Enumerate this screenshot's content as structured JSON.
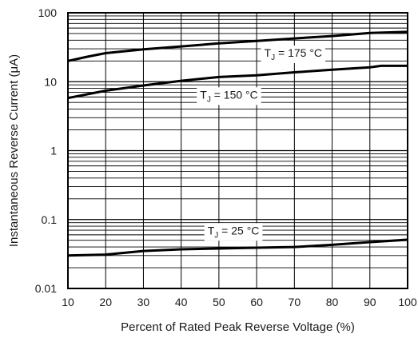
{
  "chart_data": {
    "type": "line",
    "xlabel": "Percent of Rated Peak Reverse Voltage (%)",
    "ylabel": "Instantaneous Reverse Current (μA)",
    "x_scale": "linear",
    "y_scale": "log",
    "xlim": [
      10,
      100
    ],
    "ylim": [
      0.01,
      100
    ],
    "grid": true,
    "x_ticks": [
      "10",
      "20",
      "30",
      "40",
      "50",
      "60",
      "70",
      "80",
      "90",
      "100"
    ],
    "y_ticks": [
      "0.01",
      "0.1",
      "1",
      "10",
      "100"
    ],
    "series": [
      {
        "name": "T_J = 175 °C",
        "label_main": "T",
        "label_sub": "J",
        "label_rest": " = 175 °C",
        "x": [
          10,
          15,
          20,
          30,
          40,
          50,
          60,
          70,
          80,
          90,
          100
        ],
        "y": [
          20,
          23,
          26,
          29.5,
          32.5,
          36,
          39,
          42.5,
          46,
          51,
          53
        ]
      },
      {
        "name": "T_J = 150 °C",
        "label_main": "T",
        "label_sub": "J",
        "label_rest": " = 150 °C",
        "x": [
          10,
          20,
          30,
          40,
          50,
          60,
          70,
          80,
          90,
          93,
          100
        ],
        "y": [
          5.8,
          7.4,
          8.8,
          10.3,
          11.7,
          12.4,
          13.7,
          14.9,
          16.2,
          17,
          17
        ]
      },
      {
        "name": "T_J = 25 °C",
        "label_main": "T",
        "label_sub": "J",
        "label_rest": " = 25 °C",
        "x": [
          10,
          20,
          30,
          40,
          50,
          60,
          70,
          80,
          90,
          100
        ],
        "y": [
          0.03,
          0.031,
          0.035,
          0.037,
          0.038,
          0.039,
          0.04,
          0.043,
          0.047,
          0.051
        ]
      }
    ]
  }
}
